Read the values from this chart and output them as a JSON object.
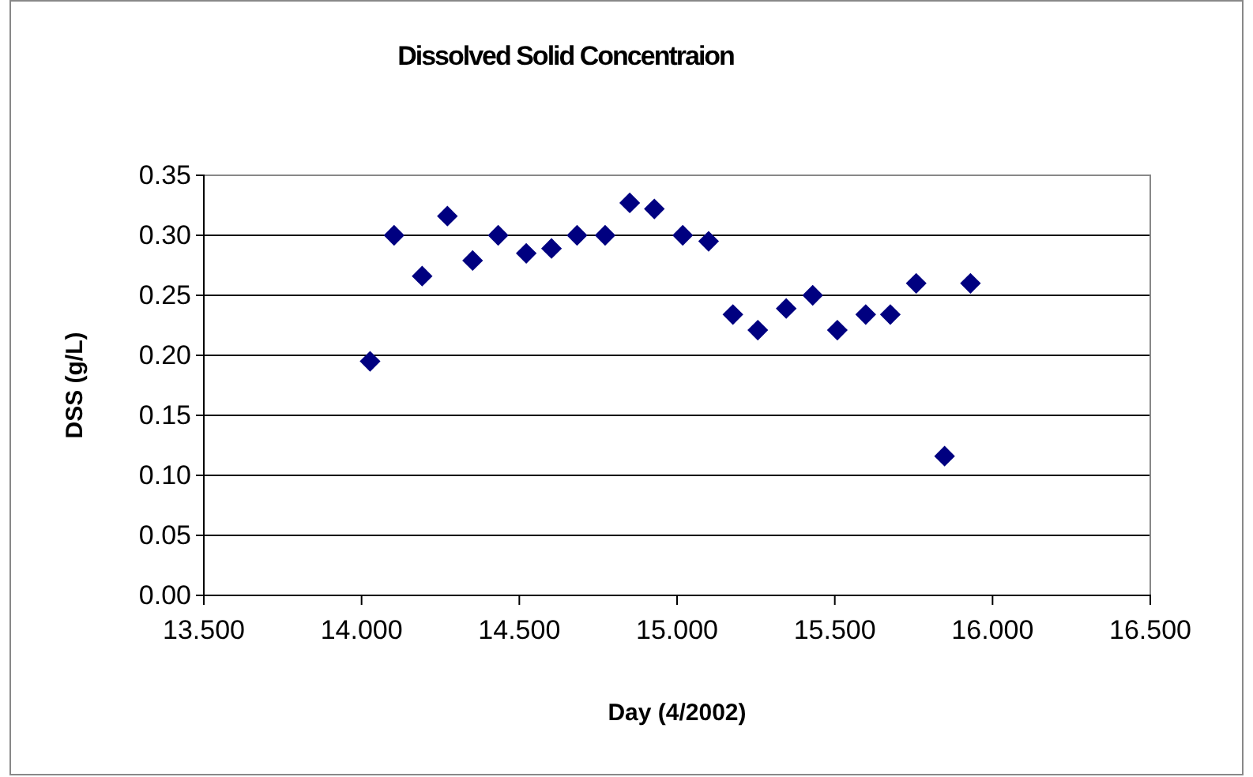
{
  "chart_data": {
    "type": "scatter",
    "title": "Dissolved Solid Concentraion",
    "xlabel": "Day (4/2002)",
    "ylabel": "DSS (g/L)",
    "x": [
      14.027,
      14.103,
      14.192,
      14.272,
      14.352,
      14.433,
      14.522,
      14.602,
      14.683,
      14.772,
      14.85,
      14.928,
      15.018,
      15.1,
      15.177,
      15.256,
      15.346,
      15.43,
      15.508,
      15.598,
      15.676,
      15.758,
      15.848,
      15.93
    ],
    "values": [
      0.195,
      0.3,
      0.266,
      0.316,
      0.279,
      0.3,
      0.285,
      0.289,
      0.3,
      0.3,
      0.327,
      0.322,
      0.3,
      0.295,
      0.234,
      0.221,
      0.239,
      0.25,
      0.221,
      0.234,
      0.234,
      0.26,
      0.116,
      0.26
    ],
    "color": "#000080",
    "marker": "diamond",
    "grid": "y",
    "xlim": [
      13.5,
      16.5
    ],
    "xticks": [
      {
        "value": 13.5,
        "label": "13.500"
      },
      {
        "value": 14,
        "label": "14.000"
      },
      {
        "value": 14.5,
        "label": "14.500"
      },
      {
        "value": 15,
        "label": "15.000"
      },
      {
        "value": 15.5,
        "label": "15.500"
      },
      {
        "value": 16,
        "label": "16.000"
      },
      {
        "value": 16.5,
        "label": "16.500"
      }
    ],
    "ylim": [
      0,
      0.35
    ],
    "yticks": [
      {
        "value": 0,
        "label": "0.00"
      },
      {
        "value": 0.05,
        "label": "0.05"
      },
      {
        "value": 0.1,
        "label": "0.10"
      },
      {
        "value": 0.15,
        "label": "0.15"
      },
      {
        "value": 0.2,
        "label": "0.20"
      },
      {
        "value": 0.25,
        "label": "0.25"
      },
      {
        "value": 0.3,
        "label": "0.30"
      },
      {
        "value": 0.35,
        "label": "0.35"
      }
    ]
  }
}
